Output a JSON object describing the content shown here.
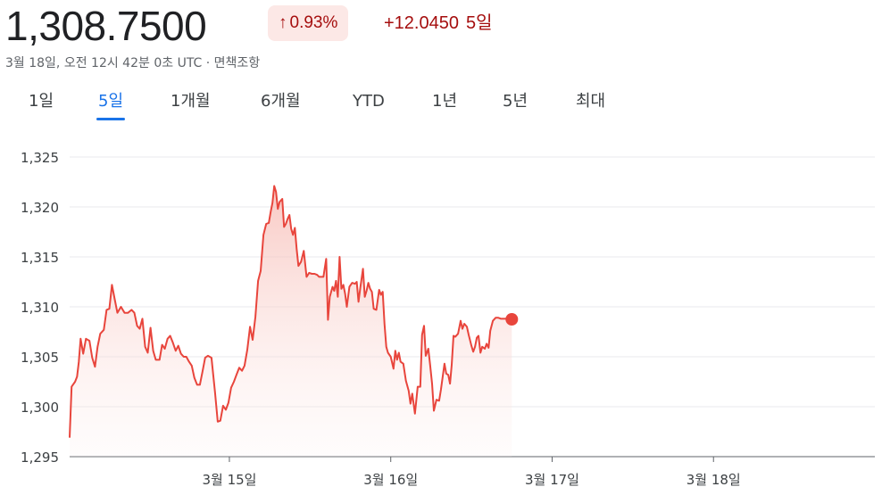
{
  "header": {
    "price": "1,308.7500",
    "percent_change": "0.93%",
    "absolute_change": "+12.0450",
    "period_label": "5일",
    "timestamp": "3월 18일, 오전 12시 42분 0초 UTC · 면책조항",
    "up_arrow_icon": "arrow-up-icon"
  },
  "tabs": [
    "1일",
    "5일",
    "1개월",
    "6개월",
    "YTD",
    "1년",
    "5년",
    "최대"
  ],
  "active_tab": "5일",
  "colors": {
    "line": "#e8453c",
    "fill": "#fbe1de",
    "active_tab": "#1a73e8",
    "grid": "#e8eaed"
  },
  "chart_data": {
    "type": "area",
    "title": "",
    "xlabel": "",
    "ylabel": "",
    "ylim": [
      1295,
      1325
    ],
    "yticks": [
      1295,
      1300,
      1305,
      1310,
      1315,
      1320,
      1325
    ],
    "ytick_labels": [
      "1,295",
      "1,300",
      "1,305",
      "1,310",
      "1,315",
      "1,320",
      "1,325"
    ],
    "xlim": [
      -0.99,
      4.0
    ],
    "xticks": [
      0,
      1,
      2,
      3
    ],
    "xtick_labels": [
      "3월 15일",
      "3월 16일",
      "3월 17일",
      "3월 18일"
    ],
    "grid": true,
    "series": [
      {
        "points": [
          [
            -0.99,
            1296.9
          ],
          [
            -0.978,
            1302.0
          ],
          [
            -0.956,
            1302.5
          ],
          [
            -0.944,
            1303.0
          ],
          [
            -0.933,
            1304.5
          ],
          [
            -0.922,
            1306.8
          ],
          [
            -0.906,
            1305.3
          ],
          [
            -0.889,
            1306.8
          ],
          [
            -0.867,
            1306.6
          ],
          [
            -0.85,
            1304.9
          ],
          [
            -0.833,
            1304.0
          ],
          [
            -0.817,
            1306.0
          ],
          [
            -0.8,
            1307.3
          ],
          [
            -0.778,
            1307.7
          ],
          [
            -0.761,
            1309.7
          ],
          [
            -0.744,
            1309.8
          ],
          [
            -0.728,
            1312.2
          ],
          [
            -0.711,
            1310.8
          ],
          [
            -0.694,
            1309.4
          ],
          [
            -0.672,
            1310.0
          ],
          [
            -0.65,
            1309.4
          ],
          [
            -0.628,
            1309.4
          ],
          [
            -0.606,
            1309.7
          ],
          [
            -0.589,
            1309.4
          ],
          [
            -0.572,
            1308.1
          ],
          [
            -0.556,
            1307.8
          ],
          [
            -0.539,
            1308.8
          ],
          [
            -0.522,
            1306.0
          ],
          [
            -0.506,
            1305.4
          ],
          [
            -0.489,
            1307.9
          ],
          [
            -0.472,
            1305.6
          ],
          [
            -0.456,
            1304.7
          ],
          [
            -0.433,
            1304.7
          ],
          [
            -0.417,
            1306.2
          ],
          [
            -0.4,
            1305.8
          ],
          [
            -0.383,
            1306.8
          ],
          [
            -0.367,
            1307.1
          ],
          [
            -0.35,
            1306.4
          ],
          [
            -0.333,
            1305.6
          ],
          [
            -0.317,
            1306.1
          ],
          [
            -0.3,
            1305.3
          ],
          [
            -0.283,
            1305.0
          ],
          [
            -0.267,
            1305.0
          ],
          [
            -0.25,
            1304.5
          ],
          [
            -0.233,
            1304.1
          ],
          [
            -0.217,
            1302.9
          ],
          [
            -0.2,
            1302.2
          ],
          [
            -0.183,
            1302.2
          ],
          [
            -0.167,
            1303.5
          ],
          [
            -0.15,
            1304.9
          ],
          [
            -0.133,
            1305.1
          ],
          [
            -0.111,
            1304.9
          ],
          [
            -0.089,
            1301.4
          ],
          [
            -0.072,
            1298.5
          ],
          [
            -0.056,
            1298.6
          ],
          [
            -0.039,
            1300.1
          ],
          [
            -0.022,
            1299.7
          ],
          [
            -0.006,
            1300.4
          ],
          [
            0.011,
            1301.9
          ],
          [
            0.028,
            1302.5
          ],
          [
            0.044,
            1303.2
          ],
          [
            0.061,
            1303.9
          ],
          [
            0.078,
            1303.6
          ],
          [
            0.094,
            1304.1
          ],
          [
            0.111,
            1305.7
          ],
          [
            0.128,
            1308.0
          ],
          [
            0.144,
            1306.7
          ],
          [
            0.161,
            1309.0
          ],
          [
            0.178,
            1312.6
          ],
          [
            0.194,
            1313.6
          ],
          [
            0.211,
            1317.2
          ],
          [
            0.228,
            1318.3
          ],
          [
            0.244,
            1318.4
          ],
          [
            0.256,
            1319.5
          ],
          [
            0.267,
            1320.4
          ],
          [
            0.278,
            1322.1
          ],
          [
            0.289,
            1321.5
          ],
          [
            0.3,
            1319.8
          ],
          [
            0.311,
            1320.5
          ],
          [
            0.328,
            1320.8
          ],
          [
            0.339,
            1318.0
          ],
          [
            0.35,
            1318.3
          ],
          [
            0.361,
            1318.8
          ],
          [
            0.372,
            1319.2
          ],
          [
            0.383,
            1317.8
          ],
          [
            0.394,
            1317.2
          ],
          [
            0.406,
            1317.9
          ],
          [
            0.417,
            1315.8
          ],
          [
            0.428,
            1314.1
          ],
          [
            0.444,
            1314.5
          ],
          [
            0.461,
            1315.6
          ],
          [
            0.478,
            1313.0
          ],
          [
            0.494,
            1313.4
          ],
          [
            0.511,
            1313.3
          ],
          [
            0.528,
            1313.3
          ],
          [
            0.544,
            1313.2
          ],
          [
            0.556,
            1313.0
          ],
          [
            0.572,
            1313.0
          ],
          [
            0.583,
            1313.0
          ],
          [
            0.6,
            1314.8
          ],
          [
            0.611,
            1308.7
          ],
          [
            0.622,
            1311.0
          ],
          [
            0.639,
            1312.0
          ],
          [
            0.65,
            1311.6
          ],
          [
            0.661,
            1312.6
          ],
          [
            0.672,
            1311.0
          ],
          [
            0.683,
            1315.0
          ],
          [
            0.694,
            1311.8
          ],
          [
            0.706,
            1312.2
          ],
          [
            0.717,
            1311.3
          ],
          [
            0.728,
            1310.0
          ],
          [
            0.744,
            1312.0
          ],
          [
            0.761,
            1312.4
          ],
          [
            0.778,
            1312.3
          ],
          [
            0.789,
            1312.5
          ],
          [
            0.8,
            1310.5
          ],
          [
            0.811,
            1311.9
          ],
          [
            0.828,
            1313.8
          ],
          [
            0.839,
            1311.0
          ],
          [
            0.85,
            1311.6
          ],
          [
            0.861,
            1312.4
          ],
          [
            0.872,
            1311.8
          ],
          [
            0.883,
            1311.5
          ],
          [
            0.894,
            1309.8
          ],
          [
            0.911,
            1309.7
          ],
          [
            0.928,
            1311.7
          ],
          [
            0.939,
            1311.2
          ],
          [
            0.95,
            1311.5
          ],
          [
            0.961,
            1308.3
          ],
          [
            0.972,
            1306.0
          ],
          [
            0.983,
            1305.4
          ],
          [
            1.0,
            1305.0
          ],
          [
            1.017,
            1303.8
          ],
          [
            1.028,
            1305.6
          ],
          [
            1.039,
            1304.7
          ],
          [
            1.05,
            1305.4
          ],
          [
            1.061,
            1304.5
          ],
          [
            1.078,
            1304.3
          ],
          [
            1.094,
            1302.6
          ],
          [
            1.111,
            1301.6
          ],
          [
            1.122,
            1300.3
          ],
          [
            1.133,
            1301.3
          ],
          [
            1.15,
            1299.3
          ],
          [
            1.167,
            1302.0
          ],
          [
            1.183,
            1302.0
          ],
          [
            1.194,
            1307.2
          ],
          [
            1.206,
            1308.1
          ],
          [
            1.217,
            1305.1
          ],
          [
            1.233,
            1305.8
          ],
          [
            1.244,
            1304.2
          ],
          [
            1.256,
            1302.3
          ],
          [
            1.267,
            1299.6
          ],
          [
            1.283,
            1300.7
          ],
          [
            1.3,
            1300.6
          ],
          [
            1.311,
            1301.7
          ],
          [
            1.322,
            1303.0
          ],
          [
            1.333,
            1304.3
          ],
          [
            1.344,
            1303.3
          ],
          [
            1.356,
            1303.2
          ],
          [
            1.367,
            1302.3
          ],
          [
            1.378,
            1304.2
          ],
          [
            1.389,
            1307.1
          ],
          [
            1.4,
            1307.0
          ],
          [
            1.417,
            1307.3
          ],
          [
            1.433,
            1308.6
          ],
          [
            1.444,
            1307.8
          ],
          [
            1.456,
            1308.3
          ],
          [
            1.472,
            1308.0
          ],
          [
            1.483,
            1307.2
          ],
          [
            1.5,
            1306.1
          ],
          [
            1.511,
            1305.5
          ],
          [
            1.522,
            1306.0
          ],
          [
            1.533,
            1306.9
          ],
          [
            1.544,
            1307.1
          ],
          [
            1.556,
            1305.4
          ],
          [
            1.567,
            1306.0
          ],
          [
            1.583,
            1305.8
          ],
          [
            1.594,
            1306.3
          ],
          [
            1.606,
            1305.9
          ],
          [
            1.617,
            1307.6
          ],
          [
            1.633,
            1308.6
          ],
          [
            1.65,
            1308.9
          ],
          [
            1.667,
            1308.9
          ],
          [
            1.683,
            1308.8
          ],
          [
            1.7,
            1308.8
          ],
          [
            1.717,
            1308.8
          ],
          [
            1.733,
            1308.8
          ],
          [
            1.75,
            1308.75
          ]
        ]
      }
    ]
  }
}
